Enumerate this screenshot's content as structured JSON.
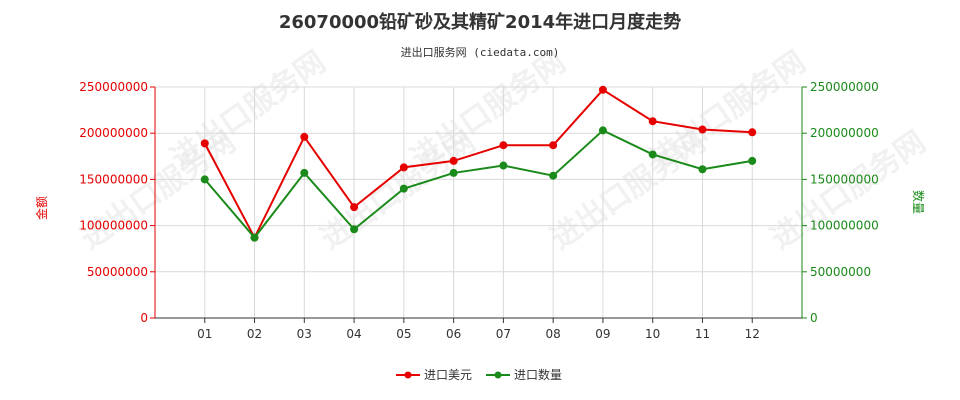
{
  "chart_data": {
    "type": "line",
    "title": "26070000铅矿砂及其精矿2014年进口月度走势",
    "subtitle": "进出口服务网 (ciedata.com)",
    "categories": [
      "01",
      "02",
      "03",
      "04",
      "05",
      "06",
      "07",
      "08",
      "09",
      "10",
      "11",
      "12"
    ],
    "left_axis": {
      "label": "金额",
      "ylim": [
        0,
        250000000
      ],
      "ticks": [
        "0",
        "50000000",
        "100000000",
        "150000000",
        "200000000",
        "250000000"
      ],
      "tick_values": [
        0,
        50000000,
        100000000,
        150000000,
        200000000,
        250000000
      ]
    },
    "right_axis": {
      "label": "数量",
      "ylim": [
        0,
        250000000
      ],
      "ticks": [
        "0",
        "50000000",
        "100000000",
        "150000000",
        "200000000",
        "250000000"
      ],
      "tick_values": [
        0,
        50000000,
        100000000,
        150000000,
        200000000,
        250000000
      ]
    },
    "series": [
      {
        "name": "进口美元",
        "axis": "left",
        "color": "#e60000",
        "values": [
          189000000,
          87000000,
          196000000,
          120000000,
          163000000,
          170000000,
          187000000,
          187000000,
          247000000,
          213000000,
          204000000,
          201000000
        ]
      },
      {
        "name": "进口数量",
        "axis": "right",
        "color": "#1a8a1a",
        "values": [
          150000000,
          87000000,
          157000000,
          96000000,
          140000000,
          157000000,
          165000000,
          154000000,
          203000000,
          177000000,
          161000000,
          170000000
        ]
      }
    ],
    "grid": true,
    "legend_position": "bottom-center"
  },
  "watermark_text": "进出口服务网"
}
